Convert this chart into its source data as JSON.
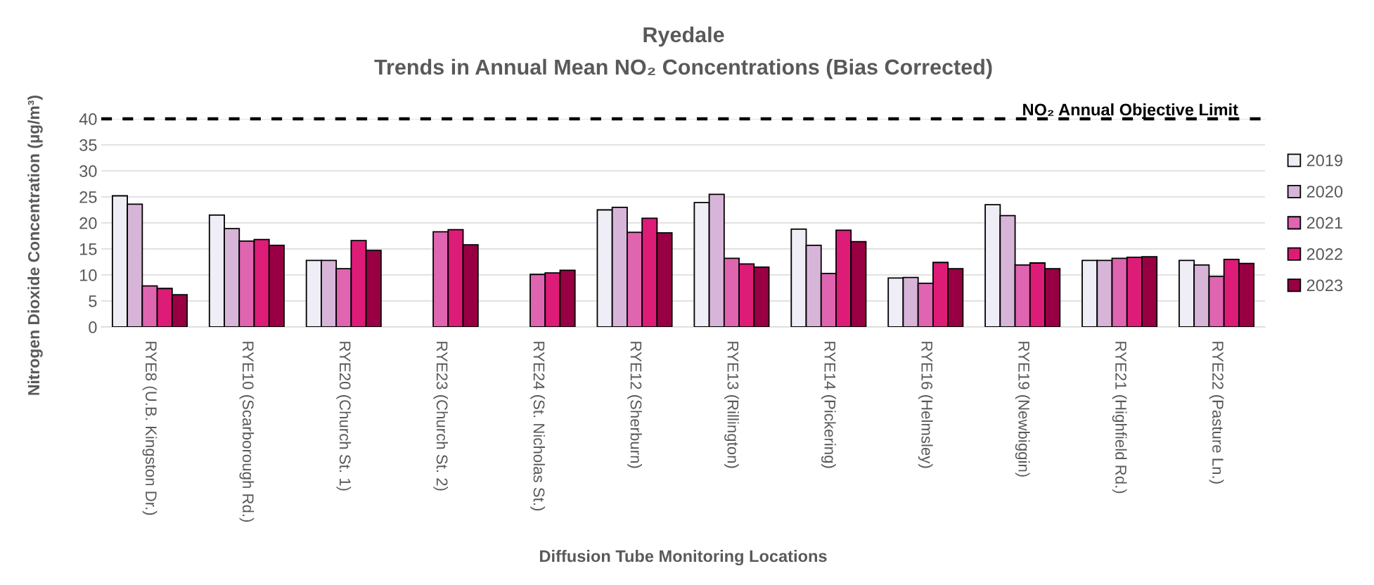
{
  "chart_data": {
    "type": "bar",
    "title": "Ryedale",
    "subtitle": "Trends in Annual Mean NO₂ Concentrations (Bias Corrected)",
    "xlabel": "Diffusion Tube Monitoring Locations",
    "ylabel": "Nitrogen Dioxide Concentration (µg/m³)",
    "categories": [
      "RYE8 (U.B. Kingston Dr.)",
      "RYE10 (Scarborough Rd.)",
      "RYE20 (Church St. 1)",
      "RYE23 (Church St. 2)",
      "RYE24 (St. Nicholas St.)",
      "RYE12 (Sherburn)",
      "RYE13 (Rillington)",
      "RYE14 (Pickering)",
      "RYE16 (Helmsley)",
      "RYE19 (Newbiggin)",
      "RYE21 (Highfield Rd.)",
      "RYE22 (Pasture Ln.)"
    ],
    "series": [
      {
        "name": "2019",
        "color": "#efedf5",
        "values": [
          25.2,
          21.5,
          12.8,
          null,
          null,
          22.5,
          23.9,
          18.8,
          9.4,
          23.5,
          12.8,
          12.8
        ]
      },
      {
        "name": "2020",
        "color": "#d7b5d8",
        "values": [
          23.6,
          18.9,
          12.8,
          null,
          null,
          23.0,
          25.5,
          15.7,
          9.5,
          21.4,
          12.8,
          11.9
        ]
      },
      {
        "name": "2021",
        "color": "#df65b0",
        "values": [
          7.9,
          16.5,
          11.2,
          18.3,
          10.1,
          18.2,
          13.2,
          10.3,
          8.4,
          11.9,
          13.2,
          9.7
        ]
      },
      {
        "name": "2022",
        "color": "#dd1c77",
        "values": [
          7.4,
          16.8,
          16.6,
          18.7,
          10.4,
          20.9,
          12.1,
          18.6,
          12.4,
          12.3,
          13.4,
          13.0
        ]
      },
      {
        "name": "2023",
        "color": "#980043",
        "values": [
          6.2,
          15.7,
          14.7,
          15.8,
          10.9,
          18.1,
          11.5,
          16.4,
          11.2,
          11.2,
          13.5,
          12.2
        ]
      }
    ],
    "ylim": [
      0,
      40
    ],
    "yticks": [
      0,
      5,
      10,
      15,
      20,
      25,
      30,
      35,
      40
    ],
    "grid": "y",
    "legend": "right",
    "ref_lines": [
      {
        "axis": "y",
        "value": 40,
        "label": "NO₂ Annual Objective Limit",
        "color": "#000000",
        "line_style": "dashed"
      }
    ]
  }
}
